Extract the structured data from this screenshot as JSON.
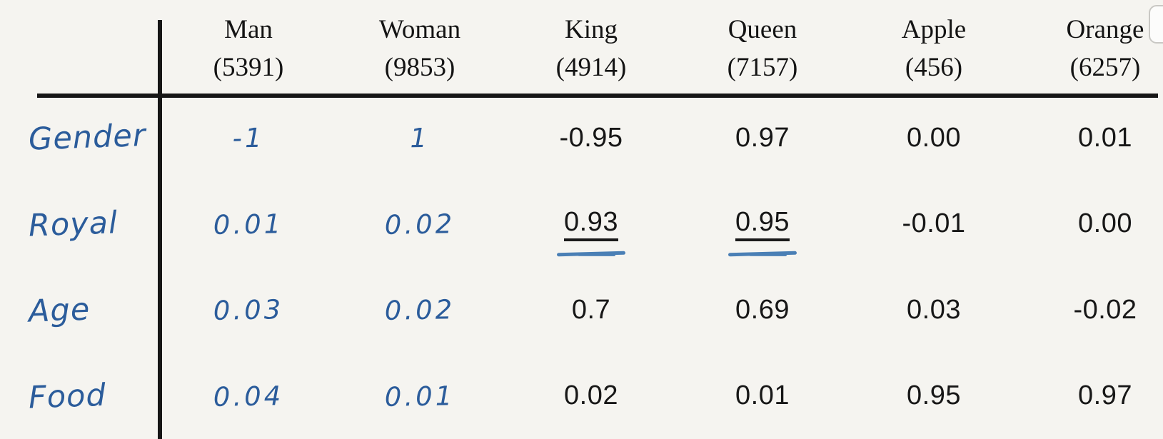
{
  "colors": {
    "background": "#f5f4f0",
    "rule_line": "#161616",
    "printed_text": "#171717",
    "handwriting_blue": "#2b5c9b",
    "hand_underline_blue": "#4a7fb5"
  },
  "chart_data": {
    "type": "table",
    "title": "",
    "columns": [
      {
        "word": "Man",
        "count": "(5391)"
      },
      {
        "word": "Woman",
        "count": "(9853)"
      },
      {
        "word": "King",
        "count": "(4914)"
      },
      {
        "word": "Queen",
        "count": "(7157)"
      },
      {
        "word": "Apple",
        "count": "(456)"
      },
      {
        "word": "Orange",
        "count": "(6257)"
      }
    ],
    "rows": [
      {
        "label": "Gender",
        "cells": [
          {
            "text": "-1",
            "handwritten": true,
            "underlined": false
          },
          {
            "text": "1",
            "handwritten": true,
            "underlined": false
          },
          {
            "text": "-0.95",
            "handwritten": false,
            "underlined": false
          },
          {
            "text": "0.97",
            "handwritten": false,
            "underlined": false
          },
          {
            "text": "0.00",
            "handwritten": false,
            "underlined": false
          },
          {
            "text": "0.01",
            "handwritten": false,
            "underlined": false
          }
        ]
      },
      {
        "label": "Royal",
        "cells": [
          {
            "text": "0.01",
            "handwritten": true,
            "underlined": false
          },
          {
            "text": "0.02",
            "handwritten": true,
            "underlined": false
          },
          {
            "text": "0.93",
            "handwritten": false,
            "underlined": true
          },
          {
            "text": "0.95",
            "handwritten": false,
            "underlined": true
          },
          {
            "text": "-0.01",
            "handwritten": false,
            "underlined": false
          },
          {
            "text": "0.00",
            "handwritten": false,
            "underlined": false
          }
        ]
      },
      {
        "label": "Age",
        "cells": [
          {
            "text": "0.03",
            "handwritten": true,
            "underlined": false
          },
          {
            "text": "0.02",
            "handwritten": true,
            "underlined": false
          },
          {
            "text": "0.7",
            "handwritten": false,
            "underlined": false
          },
          {
            "text": "0.69",
            "handwritten": false,
            "underlined": false
          },
          {
            "text": "0.03",
            "handwritten": false,
            "underlined": false
          },
          {
            "text": "-0.02",
            "handwritten": false,
            "underlined": false
          }
        ]
      },
      {
        "label": "Food",
        "cells": [
          {
            "text": "0.04",
            "handwritten": true,
            "underlined": false
          },
          {
            "text": "0.01",
            "handwritten": true,
            "underlined": false
          },
          {
            "text": "0.02",
            "handwritten": false,
            "underlined": false
          },
          {
            "text": "0.01",
            "handwritten": false,
            "underlined": false
          },
          {
            "text": "0.95",
            "handwritten": false,
            "underlined": false
          },
          {
            "text": "0.97",
            "handwritten": false,
            "underlined": false
          }
        ]
      }
    ]
  }
}
